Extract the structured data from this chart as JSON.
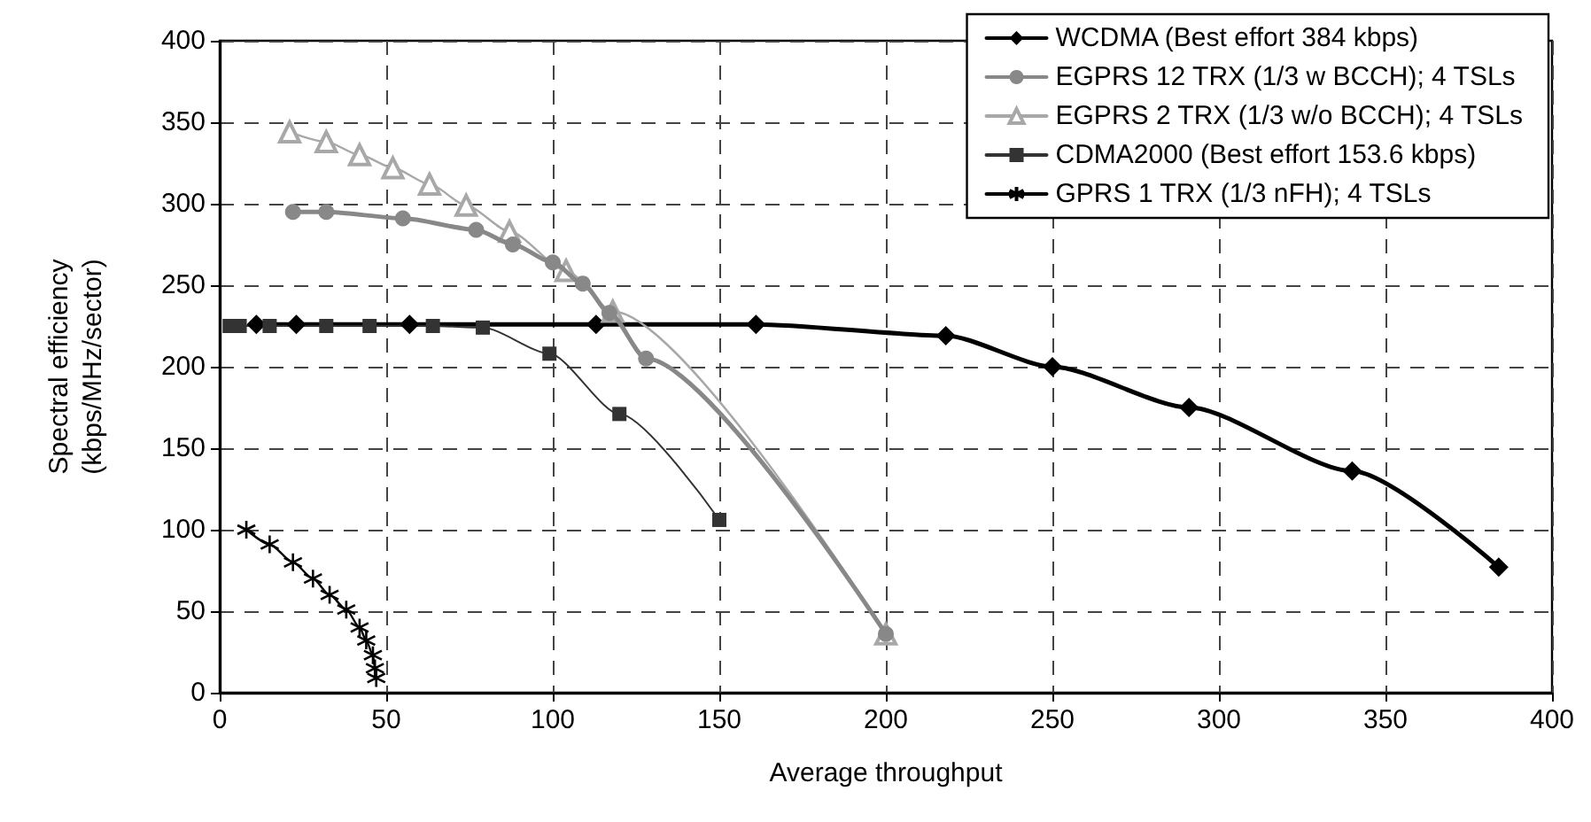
{
  "chart_data": {
    "type": "line",
    "xlabel": "Average throughput",
    "ylabel": "Spectral efficiency\n(kbps/MHz/sector)",
    "xlim": [
      0,
      400
    ],
    "xticks": [
      0,
      50,
      100,
      150,
      200,
      250,
      300,
      350,
      400
    ],
    "ylim": [
      0,
      400
    ],
    "yticks": [
      0,
      50,
      100,
      150,
      200,
      250,
      300,
      350,
      400
    ],
    "grid": true,
    "legend": "top right",
    "series": [
      {
        "name": "WCDMA (Best effort 384 kbps)",
        "color": "#000000",
        "marker": "diamond",
        "x": [
          11,
          23,
          57,
          113,
          161,
          218,
          250,
          291,
          340,
          384
        ],
        "values": [
          226,
          226,
          226,
          226,
          226,
          219,
          200,
          175,
          136,
          77
        ]
      },
      {
        "name": "EGPRS 12 TRX (1/3 w BCCH); 4 TSLs",
        "color": "#888888",
        "marker": "circle",
        "x": [
          22,
          32,
          55,
          77,
          88,
          100,
          109,
          117,
          128,
          200
        ],
        "values": [
          295,
          295,
          291,
          284,
          275,
          264,
          251,
          233,
          205,
          36
        ]
      },
      {
        "name": "EGPRS 2 TRX (1/3 w/o BCCH); 4 TSLs",
        "color": "#a8a8a8",
        "marker": "triangle",
        "x": [
          21,
          32,
          42,
          52,
          63,
          74,
          87,
          104,
          118,
          200
        ],
        "values": [
          344,
          338,
          330,
          322,
          312,
          299,
          283,
          259,
          234,
          36
        ]
      },
      {
        "name": "CDMA2000 (Best effort 153.6 kbps)",
        "color": "#333333",
        "marker": "square",
        "x": [
          3,
          6,
          15,
          32,
          45,
          64,
          79,
          99,
          120,
          150
        ],
        "values": [
          225,
          225,
          225,
          225,
          225,
          225,
          224,
          208,
          171,
          106
        ]
      },
      {
        "name": "GPRS 1 TRX (1/3 nFH); 4 TSLs",
        "color": "#000000",
        "marker": "cross",
        "x": [
          8,
          15,
          22,
          28,
          33,
          38,
          42,
          44,
          46,
          46.6,
          47
        ],
        "values": [
          100,
          91,
          80,
          70,
          60,
          51,
          40,
          32,
          23,
          15,
          9
        ]
      }
    ]
  }
}
